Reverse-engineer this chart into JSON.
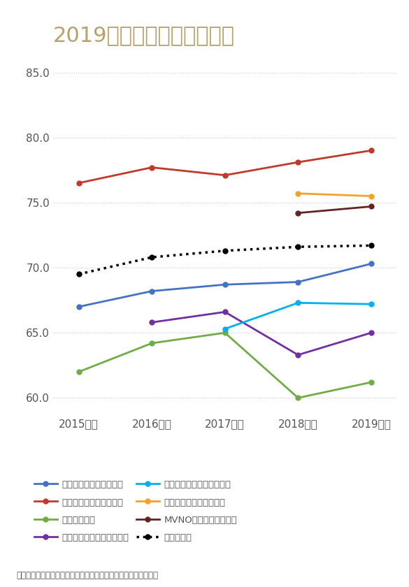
{
  "title": "2019年度　第３回調査結果",
  "title_color": "#b5a36a",
  "title_fontsize": 22,
  "years": [
    "2015年度",
    "2016年度",
    "2017年度",
    "2018年度",
    "2019年度"
  ],
  "x": [
    0,
    1,
    2,
    3,
    4
  ],
  "ylim": [
    59.0,
    86.5
  ],
  "yticks": [
    60.0,
    65.0,
    70.0,
    75.0,
    80.0,
    85.0
  ],
  "series": [
    {
      "label": "スーパーマーケット平均",
      "color": "#4472c4",
      "values": [
        67.0,
        68.2,
        68.7,
        68.9,
        70.3
      ],
      "linestyle": "-",
      "marker": "o",
      "markersize": 5,
      "linewidth": 2,
      "zorder": 5
    },
    {
      "label": "エンタテインメント平均",
      "color": "#c0392b",
      "values": [
        76.5,
        77.7,
        77.1,
        78.1,
        79.0
      ],
      "linestyle": "-",
      "marker": "o",
      "markersize": 5,
      "linewidth": 2,
      "zorder": 5
    },
    {
      "label": "携帯電話平均",
      "color": "#70ad47",
      "values": [
        62.0,
        64.2,
        65.0,
        60.0,
        61.2
      ],
      "linestyle": "-",
      "marker": "o",
      "markersize": 5,
      "linewidth": 2,
      "zorder": 5
    },
    {
      "label": "電力小売（特別調査）平均",
      "color": "#7030a0",
      "values": [
        null,
        65.8,
        66.6,
        63.3,
        65.0
      ],
      "linestyle": "-",
      "marker": "o",
      "markersize": 5,
      "linewidth": 2,
      "zorder": 5
    },
    {
      "label": "ガス小売（特別調査）平均",
      "color": "#00b0f0",
      "values": [
        null,
        null,
        65.3,
        67.3,
        67.2
      ],
      "linestyle": "-",
      "marker": "o",
      "markersize": 5,
      "linewidth": 2,
      "zorder": 5
    },
    {
      "label": "映画館（特別調査）平均",
      "color": "#f4a32a",
      "values": [
        null,
        null,
        null,
        75.7,
        75.5
      ],
      "linestyle": "-",
      "marker": "o",
      "markersize": 5,
      "linewidth": 2,
      "zorder": 5
    },
    {
      "label": "MVNO（特別調査）平均",
      "color": "#632523",
      "values": [
        null,
        null,
        null,
        74.2,
        74.7
      ],
      "linestyle": "-",
      "marker": "o",
      "markersize": 5,
      "linewidth": 2,
      "zorder": 5
    },
    {
      "label": "全業種平均",
      "color": "#000000",
      "values": [
        69.5,
        70.8,
        71.3,
        71.6,
        71.7
      ],
      "linestyle": ":",
      "marker": "o",
      "markersize": 5,
      "linewidth": 2.5,
      "zorder": 5
    }
  ],
  "legend_order": [
    "スーパーマーケット平均",
    "エンタテインメント平均",
    "携帯電話平均",
    "電力小売（特別調査）平均",
    "ガス小売（特別調査）平均",
    "映画館（特別調査）平均",
    "MVNO（特別調査）平均",
    "全業種平均"
  ],
  "footnote": "各業種の平均には、ランキング対象外調査企業の結果も含みます",
  "bg_color": "#ffffff",
  "grid_color": "#cccccc",
  "tick_color": "#555555",
  "tick_fontsize": 11
}
